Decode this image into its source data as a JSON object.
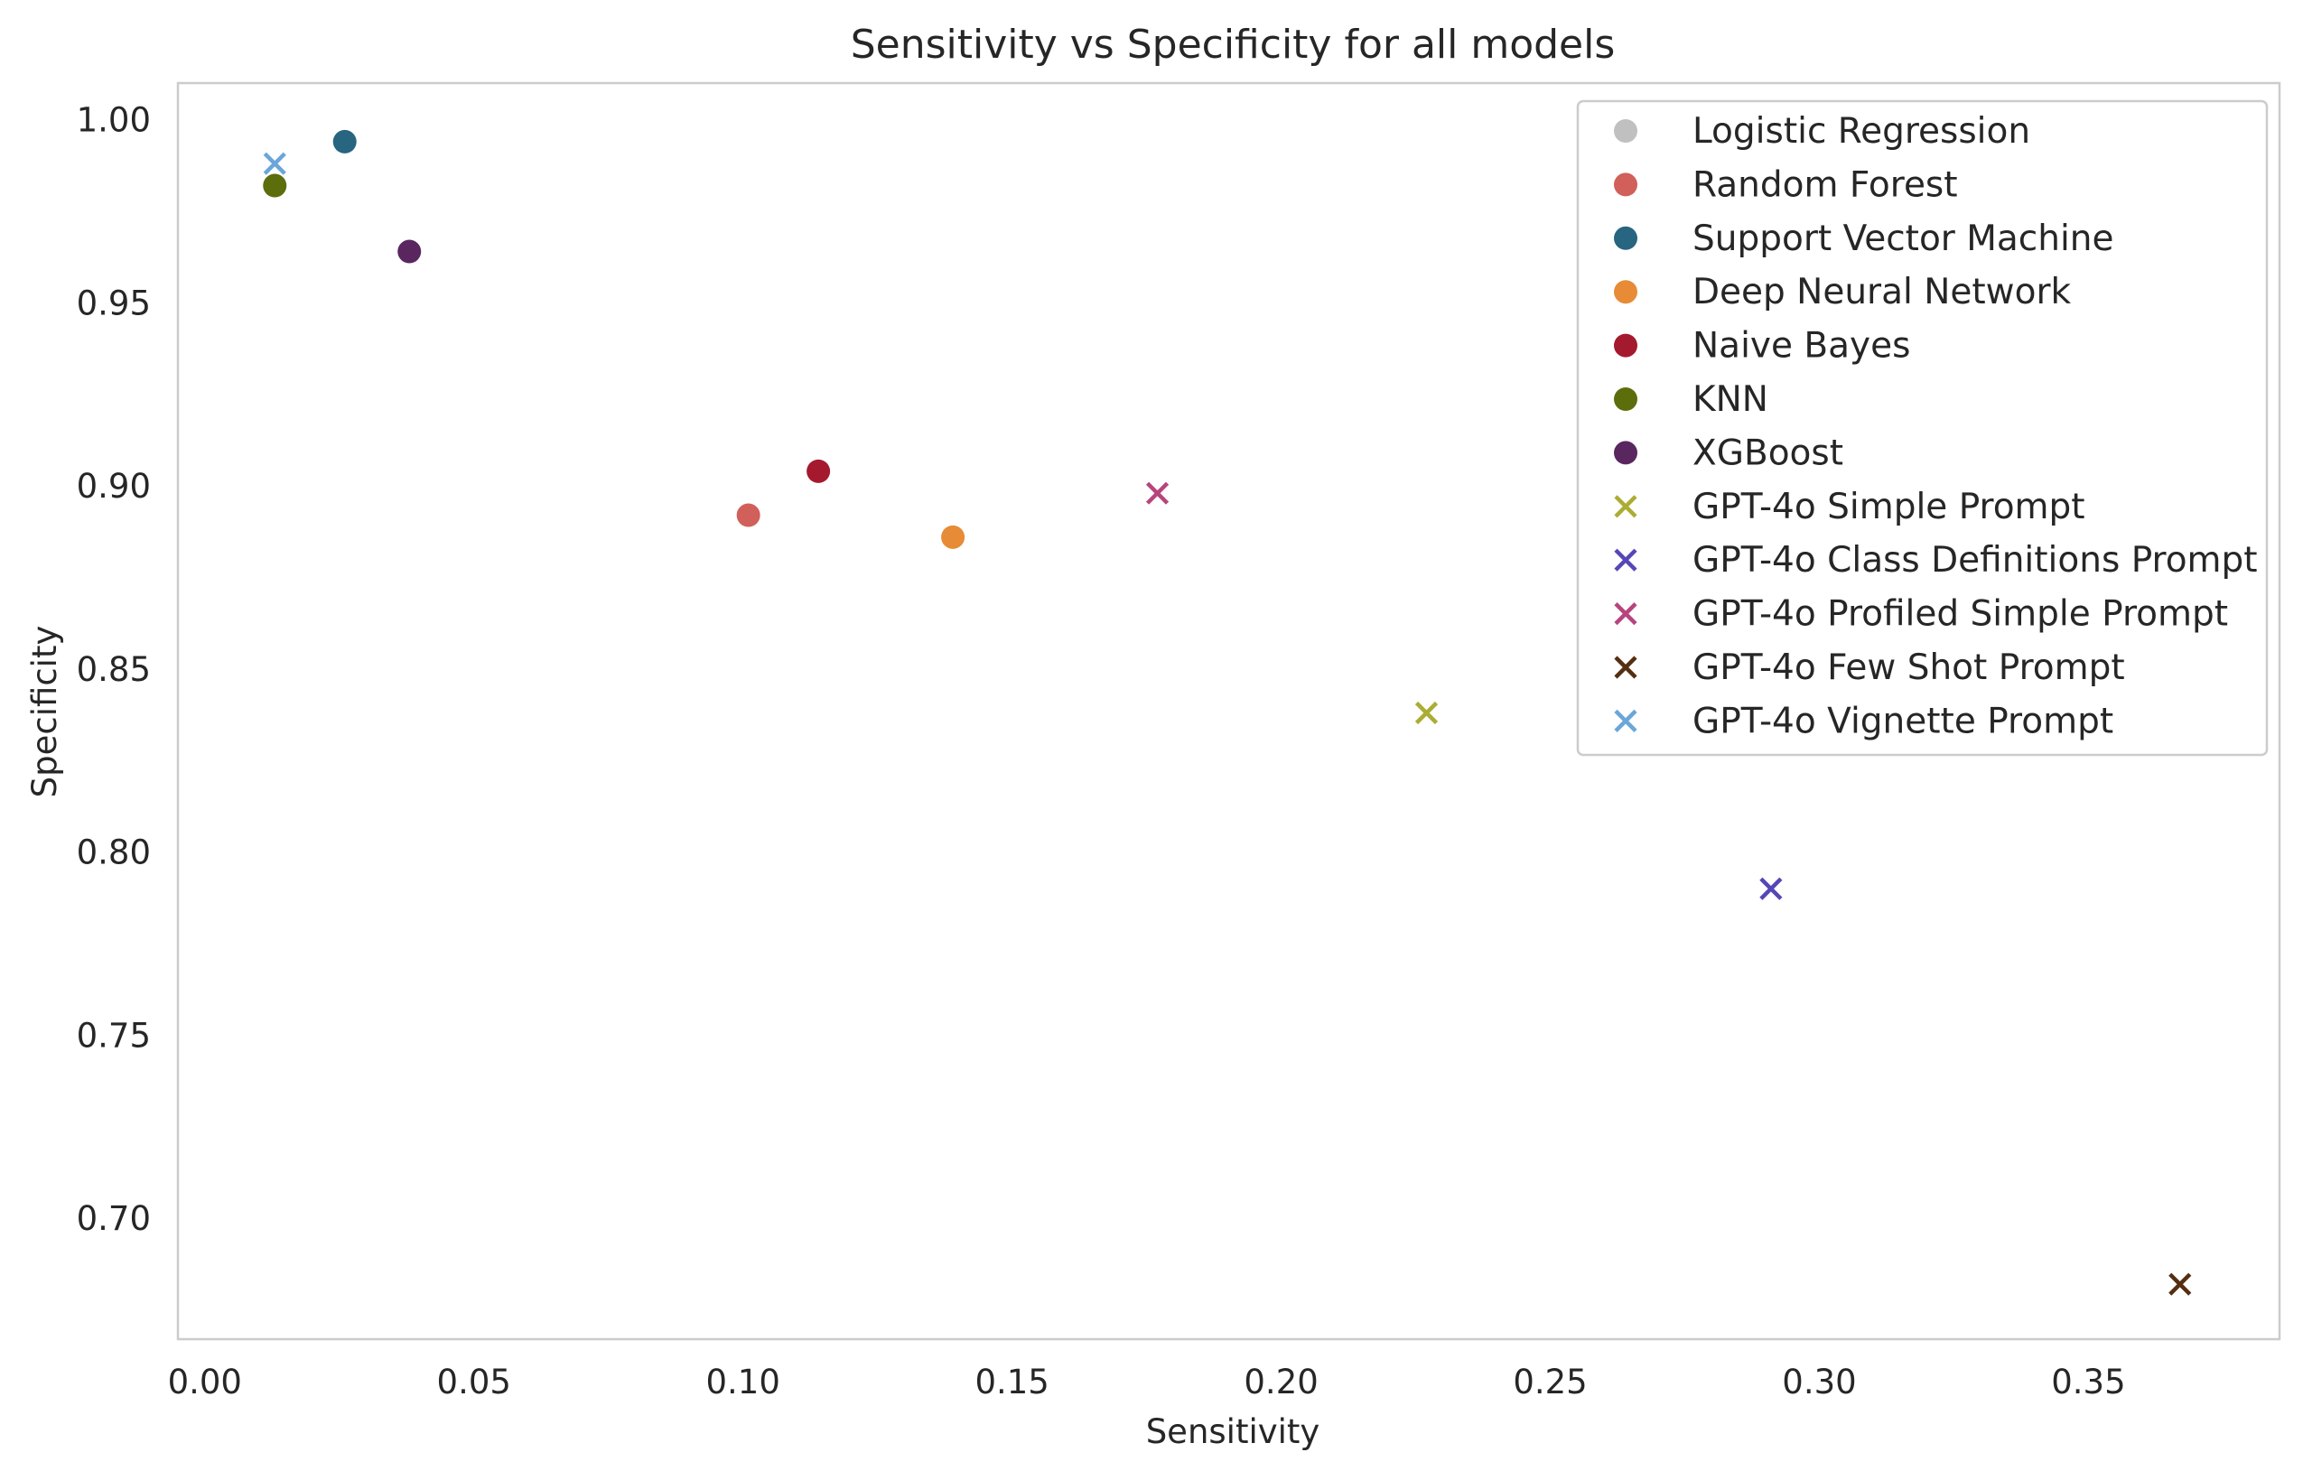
{
  "chart_data": {
    "type": "scatter",
    "title": "Sensitivity vs Specificity for all models",
    "xlabel": "Sensitivity",
    "ylabel": "Specificity",
    "xlim": [
      -0.005,
      0.3855
    ],
    "ylim": [
      0.667,
      1.01
    ],
    "xticks": [
      0.0,
      0.05,
      0.1,
      0.15,
      0.2,
      0.25,
      0.3,
      0.35
    ],
    "xtick_labels": [
      "0.00",
      "0.05",
      "0.10",
      "0.15",
      "0.20",
      "0.25",
      "0.30",
      "0.35"
    ],
    "yticks": [
      0.7,
      0.75,
      0.8,
      0.85,
      0.9,
      0.95,
      1.0
    ],
    "ytick_labels": [
      "0.70",
      "0.75",
      "0.80",
      "0.85",
      "0.90",
      "0.95",
      "1.00"
    ],
    "grid": false,
    "legend_position": "top-right",
    "series": [
      {
        "name": "Logistic Regression",
        "marker": "circle",
        "color": "#c0c0c0",
        "x": 0.013,
        "y": 0.982
      },
      {
        "name": "Random Forest",
        "marker": "circle",
        "color": "#d15f5a",
        "x": 0.101,
        "y": 0.892
      },
      {
        "name": "Support Vector Machine",
        "marker": "circle",
        "color": "#276580",
        "x": 0.026,
        "y": 0.994
      },
      {
        "name": "Deep Neural Network",
        "marker": "circle",
        "color": "#e78b36",
        "x": 0.139,
        "y": 0.886
      },
      {
        "name": "Naive Bayes",
        "marker": "circle",
        "color": "#a5192f",
        "x": 0.114,
        "y": 0.904
      },
      {
        "name": "KNN",
        "marker": "circle",
        "color": "#5c6d0c",
        "x": 0.013,
        "y": 0.982
      },
      {
        "name": "XGBoost",
        "marker": "circle",
        "color": "#5a2660",
        "x": 0.038,
        "y": 0.964
      },
      {
        "name": "GPT-4o Simple Prompt",
        "marker": "x",
        "color": "#abad33",
        "x": 0.227,
        "y": 0.838
      },
      {
        "name": "GPT-4o Class Definitions Prompt",
        "marker": "x",
        "color": "#5547b6",
        "x": 0.291,
        "y": 0.79
      },
      {
        "name": "GPT-4o Profiled Simple Prompt",
        "marker": "x",
        "color": "#b7457d",
        "x": 0.177,
        "y": 0.898
      },
      {
        "name": "GPT-4o Few Shot Prompt",
        "marker": "x",
        "color": "#552e12",
        "x": 0.367,
        "y": 0.682
      },
      {
        "name": "GPT-4o Vignette Prompt",
        "marker": "x",
        "color": "#6aa6d9",
        "x": 0.013,
        "y": 0.988
      }
    ]
  }
}
